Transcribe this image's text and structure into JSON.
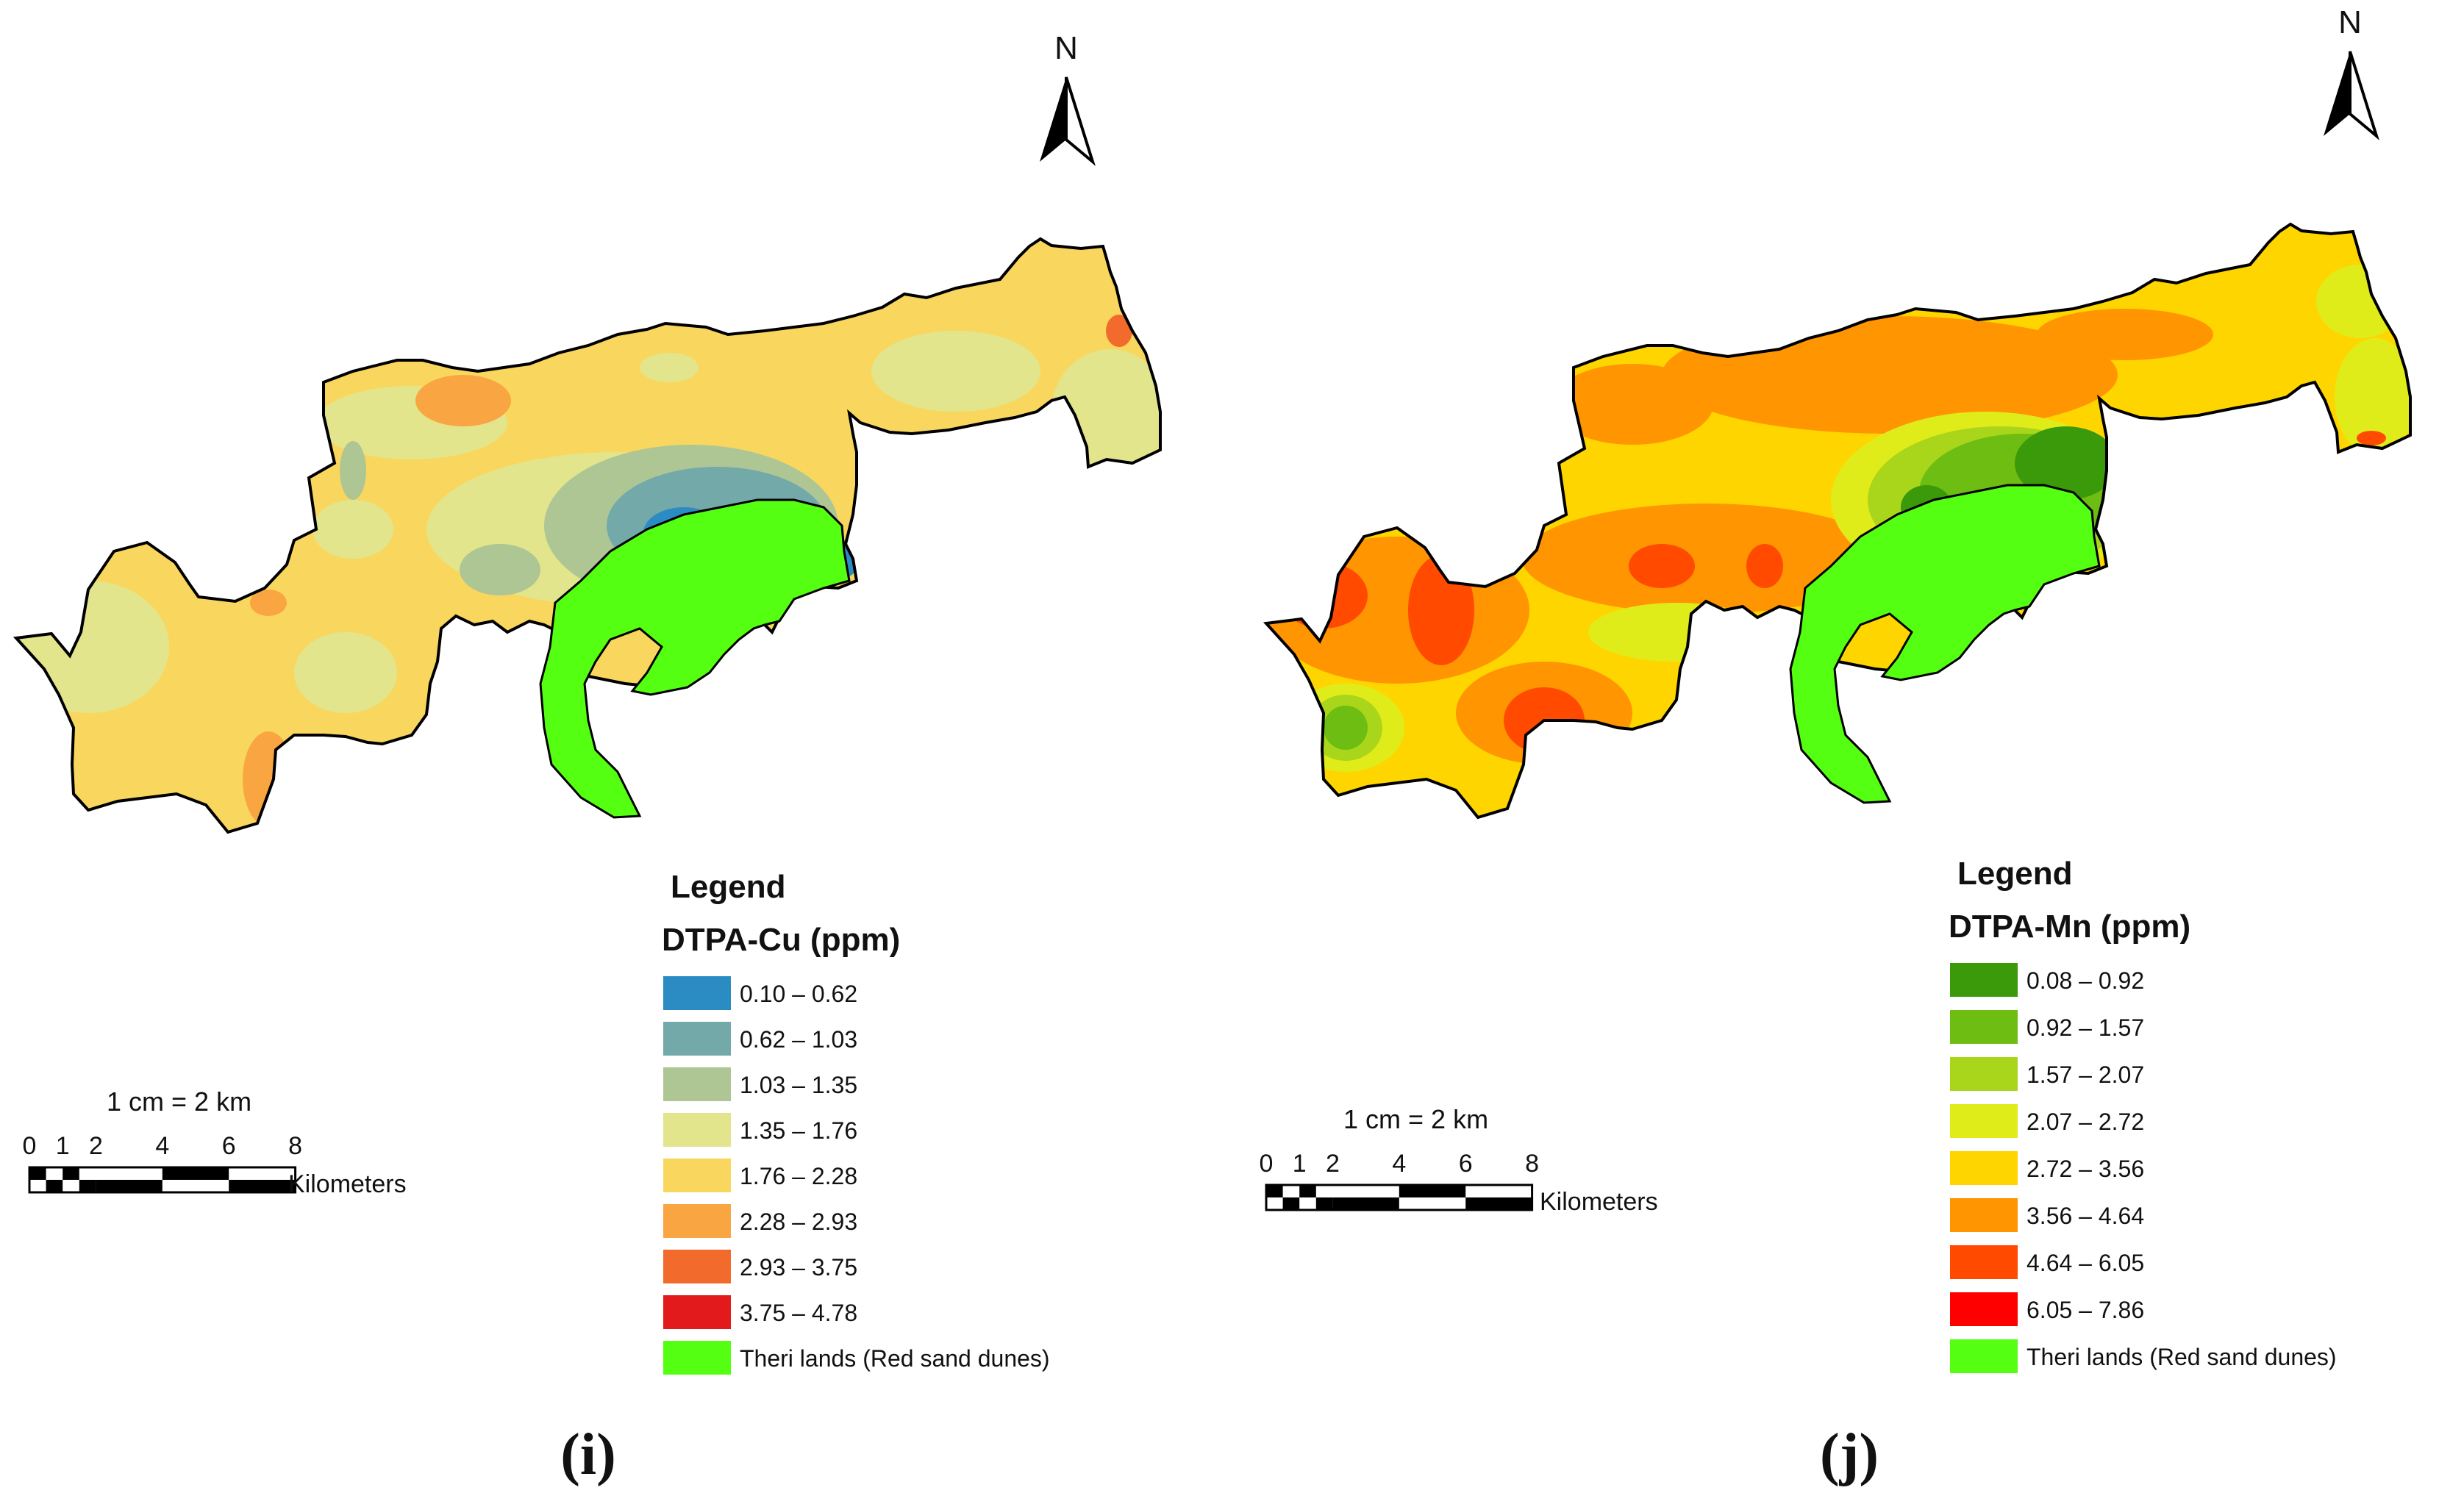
{
  "panels": [
    {
      "id": "i",
      "caption": "(i)",
      "north_label": "N",
      "legend": {
        "heading": "Legend",
        "title": "DTPA-Cu (ppm)",
        "items": [
          {
            "label": "0.10 – 0.62",
            "color": "#2b8cc4"
          },
          {
            "label": "0.62 – 1.03",
            "color": "#74a9a9"
          },
          {
            "label": "1.03 – 1.35",
            "color": "#aec694"
          },
          {
            "label": "1.35 – 1.76",
            "color": "#e2e58c"
          },
          {
            "label": "1.76 – 2.28",
            "color": "#f9d75e"
          },
          {
            "label": "2.28 – 2.93",
            "color": "#f9a541"
          },
          {
            "label": "2.93 – 3.75",
            "color": "#f26a2c"
          },
          {
            "label": "3.75 – 4.78",
            "color": "#e31a1c"
          },
          {
            "label": "Theri lands (Red sand dunes)",
            "color": "#55ff11"
          }
        ]
      },
      "scale": {
        "ratio": "1 cm = 2 km",
        "ticks": [
          "0",
          "1",
          "2",
          "4",
          "6",
          "8"
        ],
        "unit": "Kilometers"
      }
    },
    {
      "id": "j",
      "caption": "(j)",
      "north_label": "N",
      "legend": {
        "heading": "Legend",
        "title": "DTPA-Mn (ppm)",
        "items": [
          {
            "label": "0.08 – 0.92",
            "color": "#3a9a0a"
          },
          {
            "label": "0.92 – 1.57",
            "color": "#6dbd12"
          },
          {
            "label": "1.57 – 2.07",
            "color": "#a9d61a"
          },
          {
            "label": "2.07 – 2.72",
            "color": "#e0ec1a"
          },
          {
            "label": "2.72 – 3.56",
            "color": "#ffd500"
          },
          {
            "label": "3.56 – 4.64",
            "color": "#ff9500"
          },
          {
            "label": "4.64 – 6.05",
            "color": "#ff4a00"
          },
          {
            "label": "6.05 – 7.86",
            "color": "#ff0000"
          },
          {
            "label": "Theri lands (Red sand dunes)",
            "color": "#55ff11"
          }
        ]
      },
      "scale": {
        "ratio": "1 cm = 2 km",
        "ticks": [
          "0",
          "1",
          "2",
          "4",
          "6",
          "8"
        ],
        "unit": "Kilometers"
      }
    }
  ]
}
